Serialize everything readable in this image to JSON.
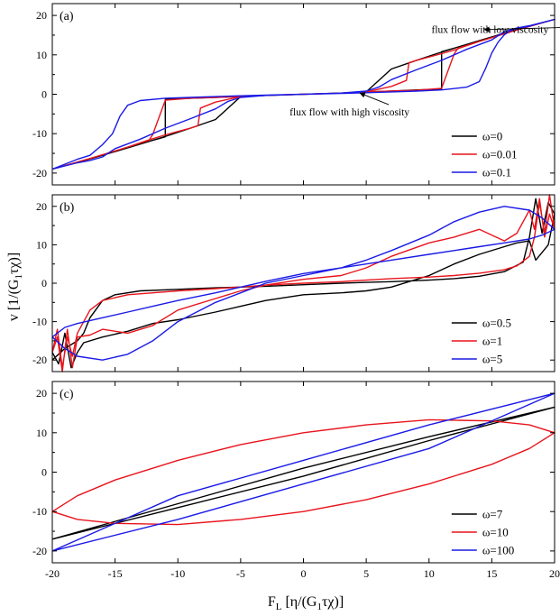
{
  "ylabel_main": "v",
  "ylabel_unit": "[1/(G",
  "ylabel_sub": "1",
  "ylabel_unit_end": "τχ)]",
  "xlabel_main": "F",
  "xlabel_sub_L": "L",
  "xlabel_unit": "[η/(G",
  "xlabel_sub": "1",
  "xlabel_unit_end": "τχ)]",
  "colors": {
    "black": "#000000",
    "red": "#e8141c",
    "blue": "#1a1ae6"
  },
  "chart_data": [
    {
      "type": "line",
      "panel_label": "(a)",
      "xlim": [
        -20,
        20
      ],
      "ylim": [
        -23,
        23
      ],
      "yticks": [
        -20,
        -10,
        0,
        10,
        20
      ],
      "legend": "bottom-right",
      "annotations": [
        {
          "text": "flux flow with low viscosity",
          "x": 10.2,
          "y": 15.6,
          "arrow_to": [
            14.4,
            16.4
          ]
        },
        {
          "text": "flux flow with high viscosity",
          "x": -1.1,
          "y": -5.4,
          "arrow_to": [
            4.5,
            0.3
          ]
        }
      ],
      "series": [
        {
          "name": "ω=0",
          "color": "black",
          "x": [
            -20,
            -18,
            -16,
            -14,
            -12,
            -11,
            -11,
            -9,
            -7,
            -5,
            -3,
            -1,
            0,
            1,
            3,
            5,
            7,
            9,
            11,
            11,
            12,
            14,
            16,
            18,
            20,
            18,
            16,
            14,
            12,
            10.6,
            9,
            7,
            5,
            3,
            1,
            0,
            -1,
            -3,
            -5,
            -7,
            -9,
            -10.6,
            -12,
            -14,
            -16,
            -18,
            -20
          ],
          "y": [
            -19,
            -17.3,
            -15.5,
            -13.6,
            -11.7,
            -10.8,
            -1.3,
            -1,
            -0.8,
            -0.6,
            -0.3,
            -0.1,
            0,
            0.1,
            0.3,
            0.6,
            0.8,
            1.1,
            1.3,
            10.8,
            11.7,
            13.6,
            15.5,
            17.3,
            19,
            17.3,
            15.5,
            13.6,
            11.7,
            10.3,
            8.6,
            6.4,
            0.6,
            0.3,
            0.1,
            0,
            -0.1,
            -0.3,
            -0.6,
            -6.4,
            -8.6,
            -10.3,
            -11.7,
            -13.6,
            -15.5,
            -17.3,
            -19
          ]
        },
        {
          "name": "ω=0.01",
          "color": "red",
          "x": [
            -20,
            -17,
            -14,
            -12.3,
            -12,
            -11,
            -9,
            -7,
            -5,
            -3,
            0,
            3,
            5,
            7,
            8.2,
            8.4,
            9,
            11,
            12.3,
            12.4,
            14,
            17,
            20,
            17,
            14,
            12.3,
            12,
            11,
            9,
            7,
            5,
            3,
            0,
            -3,
            -5,
            -7,
            -8.2,
            -8.4,
            -9,
            -11,
            -12.4,
            -14,
            -17,
            -20
          ],
          "y": [
            -19,
            -16.3,
            -13.4,
            -11.7,
            -10.2,
            -1.5,
            -1,
            -0.8,
            -0.6,
            -0.3,
            0,
            0.3,
            0.6,
            2,
            3.5,
            8,
            8.6,
            10.3,
            11.5,
            11.7,
            13.4,
            16.3,
            19,
            16.3,
            13.4,
            11.7,
            10.2,
            1.5,
            1,
            0.8,
            0.6,
            0.3,
            0,
            -0.3,
            -0.6,
            -2,
            -3.5,
            -8,
            -8.6,
            -10.3,
            -11.7,
            -13.4,
            -16.3,
            -19
          ]
        },
        {
          "name": "ω=0.1",
          "color": "blue",
          "x": [
            -20,
            -18,
            -17,
            -16,
            -15.2,
            -14.6,
            -14,
            -13,
            -11,
            -9,
            -7,
            -5,
            -3,
            0,
            3,
            5,
            6,
            7,
            9,
            11,
            13,
            15,
            16,
            17,
            18,
            20,
            18,
            16.5,
            16,
            15.5,
            15,
            14.5,
            14,
            13,
            11,
            9,
            7,
            5,
            3,
            0,
            -3,
            -5,
            -6,
            -7,
            -9,
            -11,
            -13,
            -15,
            -16,
            -17,
            -18,
            -20
          ],
          "y": [
            -19,
            -16.5,
            -15.5,
            -12.8,
            -10,
            -5.5,
            -2.8,
            -1.6,
            -1,
            -0.8,
            -0.6,
            -0.4,
            -0.2,
            0,
            0.3,
            0.8,
            1.8,
            3.7,
            6.2,
            8.6,
            11.4,
            13.8,
            15.9,
            16.8,
            17.4,
            19,
            17.3,
            16.2,
            15.1,
            13.2,
            10.5,
            6.5,
            3.2,
            1.8,
            1.1,
            0.8,
            0.6,
            0.4,
            0.2,
            0,
            -0.3,
            -0.8,
            -1.8,
            -3.7,
            -6.2,
            -8.6,
            -11.4,
            -13.8,
            -15.9,
            -16.8,
            -17.4,
            -19
          ]
        }
      ]
    },
    {
      "type": "line",
      "panel_label": "(b)",
      "xlim": [
        -20,
        20
      ],
      "ylim": [
        -23,
        23
      ],
      "yticks": [
        -20,
        -10,
        0,
        10,
        20
      ],
      "legend": "bottom-right",
      "series": [
        {
          "name": "ω=0.5",
          "color": "black",
          "x": [
            -20,
            -19,
            -18,
            -17.5,
            -17,
            -16,
            -15,
            -13,
            -10,
            -7,
            -5,
            -3,
            0,
            3,
            5,
            7,
            10,
            12,
            14,
            16,
            17.5,
            18,
            18.5,
            19,
            19.5,
            20,
            19.5,
            19,
            18.5,
            18,
            17,
            16,
            14,
            12,
            10,
            7,
            5,
            3,
            0,
            -3,
            -5,
            -7,
            -10,
            -12,
            -14,
            -16,
            -17.5,
            -18,
            -18.5,
            -19,
            -19.5,
            -20
          ],
          "y": [
            -20,
            -17,
            -15,
            -13,
            -9,
            -4.5,
            -3,
            -2,
            -1.6,
            -1.2,
            -1,
            -0.8,
            -0.4,
            0,
            0.2,
            0.4,
            0.8,
            1.2,
            1.8,
            3,
            5.5,
            12,
            22,
            13,
            21,
            18,
            10,
            8,
            6,
            11,
            10.5,
            9.5,
            7.5,
            5,
            2,
            -1,
            -2,
            -2.5,
            -3,
            -4.5,
            -6,
            -7.5,
            -9.5,
            -10.5,
            -12.5,
            -14,
            -15.5,
            -18,
            -22,
            -13,
            -21,
            -18
          ]
        },
        {
          "name": "ω=1",
          "color": "red",
          "x": [
            -20,
            -19.6,
            -19.2,
            -18.8,
            -18.4,
            -18,
            -17,
            -16,
            -14,
            -12,
            -10,
            -7,
            -5,
            -3,
            0,
            3,
            5,
            7,
            10,
            12,
            14,
            16,
            17,
            18,
            18.4,
            18.8,
            19.2,
            19.6,
            20,
            19.6,
            19.2,
            18.8,
            18.4,
            18,
            17,
            16,
            14,
            12,
            10,
            7,
            5,
            3,
            0,
            -3,
            -5,
            -7,
            -10,
            -12,
            -14,
            -16,
            -17,
            -18,
            -18.4,
            -18.8,
            -19.2,
            -19.6,
            -20
          ],
          "y": [
            -18,
            -12,
            -22,
            -14,
            -19,
            -13,
            -7,
            -4.5,
            -3,
            -2.5,
            -2,
            -1.4,
            -1,
            -0.5,
            0,
            0.4,
            0.8,
            1.2,
            1.6,
            2,
            2.6,
            3.5,
            4.5,
            7,
            12,
            21,
            13,
            23,
            14,
            18,
            12,
            22,
            14,
            19,
            13,
            11,
            14,
            12,
            10.5,
            7,
            4,
            2,
            1,
            -0.5,
            -2,
            -4,
            -7,
            -11,
            -13,
            -12,
            -13.5,
            -14,
            -22,
            -12,
            -23,
            -14,
            -18
          ]
        },
        {
          "name": "ω=5",
          "color": "blue",
          "x": [
            -20,
            -19,
            -18,
            -16,
            -14,
            -12,
            -10,
            -7,
            -5,
            -3,
            0,
            3,
            5,
            7,
            10,
            12,
            14,
            16,
            18,
            19,
            20,
            19,
            18,
            16,
            14,
            12,
            10,
            7,
            5,
            3,
            0,
            -3,
            -5,
            -7,
            -10,
            -12,
            -14,
            -16,
            -18,
            -19,
            -20
          ],
          "y": [
            -14,
            -17,
            -19,
            -20,
            -18.5,
            -15,
            -10,
            -5,
            -2.5,
            0,
            2,
            4,
            6,
            8.5,
            12.5,
            16,
            18.5,
            20,
            19,
            17,
            14,
            12.5,
            11.5,
            10.5,
            9.5,
            8.5,
            7.5,
            6,
            5,
            4,
            2.5,
            0.5,
            -1,
            -2.5,
            -4.5,
            -6,
            -7.5,
            -9,
            -10.5,
            -11.5,
            -14
          ]
        }
      ]
    },
    {
      "type": "line",
      "panel_label": "(c)",
      "xlim": [
        -20,
        20
      ],
      "ylim": [
        -23,
        23
      ],
      "yticks": [
        -20,
        -10,
        0,
        10,
        20
      ],
      "xticks": [
        -20,
        -15,
        -10,
        -5,
        0,
        5,
        10,
        15,
        20
      ],
      "legend": "bottom-right",
      "series": [
        {
          "name": "ω=7",
          "color": "black",
          "x": [
            -20,
            -10,
            0,
            10,
            20,
            10,
            0,
            -10,
            -20
          ],
          "y": [
            -17,
            -9,
            -1,
            8,
            16.5,
            9,
            1,
            -8,
            -17
          ]
        },
        {
          "name": "ω=10",
          "color": "red",
          "x": [
            -20,
            -18,
            -15,
            -10,
            -5,
            0,
            5,
            10,
            15,
            18,
            20,
            18,
            15,
            10,
            5,
            0,
            -5,
            -10,
            -15,
            -18,
            -20
          ],
          "y": [
            -10,
            -6,
            -2,
            3,
            7,
            10,
            12,
            13.3,
            13,
            12,
            10,
            6,
            2,
            -3,
            -7,
            -10,
            -12,
            -13.3,
            -13,
            -12,
            -10
          ]
        },
        {
          "name": "ω=100",
          "color": "blue",
          "x": [
            -20,
            -10,
            0,
            10,
            20,
            10,
            0,
            -10,
            -20
          ],
          "y": [
            -20,
            -12,
            -3,
            6,
            20,
            12,
            3,
            -6,
            -20
          ]
        }
      ]
    }
  ]
}
